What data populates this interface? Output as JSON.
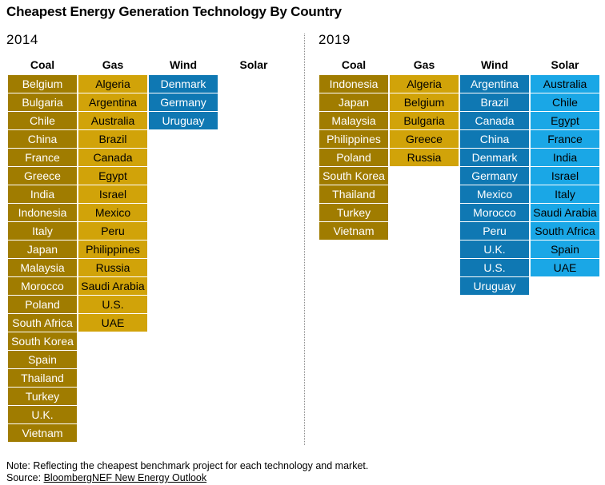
{
  "title": "Cheapest Energy Generation Technology By Country",
  "colors": {
    "coal": "#a07c00",
    "gas": "#d1a309",
    "wind": "#0f78b3",
    "solar": "#1aa7e6"
  },
  "chart_data": {
    "type": "table",
    "title": "Cheapest Energy Generation Technology By Country",
    "technologies": [
      "Coal",
      "Gas",
      "Wind",
      "Solar"
    ],
    "panels": [
      {
        "year": "2014",
        "columns": [
          {
            "name": "Coal",
            "key": "coal",
            "countries": [
              "Belgium",
              "Bulgaria",
              "Chile",
              "China",
              "France",
              "Greece",
              "India",
              "Indonesia",
              "Italy",
              "Japan",
              "Malaysia",
              "Morocco",
              "Poland",
              "South Africa",
              "South Korea",
              "Spain",
              "Thailand",
              "Turkey",
              "U.K.",
              "Vietnam"
            ]
          },
          {
            "name": "Gas",
            "key": "gas",
            "countries": [
              "Algeria",
              "Argentina",
              "Australia",
              "Brazil",
              "Canada",
              "Egypt",
              "Israel",
              "Mexico",
              "Peru",
              "Philippines",
              "Russia",
              "Saudi Arabia",
              "U.S.",
              "UAE"
            ]
          },
          {
            "name": "Wind",
            "key": "wind",
            "countries": [
              "Denmark",
              "Germany",
              "Uruguay"
            ]
          },
          {
            "name": "Solar",
            "key": "solar",
            "countries": []
          }
        ]
      },
      {
        "year": "2019",
        "columns": [
          {
            "name": "Coal",
            "key": "coal",
            "countries": [
              "Indonesia",
              "Japan",
              "Malaysia",
              "Philippines",
              "Poland",
              "South Korea",
              "Thailand",
              "Turkey",
              "Vietnam"
            ]
          },
          {
            "name": "Gas",
            "key": "gas",
            "countries": [
              "Algeria",
              "Belgium",
              "Bulgaria",
              "Greece",
              "Russia"
            ]
          },
          {
            "name": "Wind",
            "key": "wind",
            "countries": [
              "Argentina",
              "Brazil",
              "Canada",
              "China",
              "Denmark",
              "Germany",
              "Mexico",
              "Morocco",
              "Peru",
              "U.K.",
              "U.S.",
              "Uruguay"
            ]
          },
          {
            "name": "Solar",
            "key": "solar",
            "countries": [
              "Australia",
              "Chile",
              "Egypt",
              "France",
              "India",
              "Israel",
              "Italy",
              "Saudi Arabia",
              "South Africa",
              "Spain",
              "UAE"
            ]
          }
        ]
      }
    ]
  },
  "footer": {
    "note": "Note: Reflecting the cheapest benchmark project for each technology and market.",
    "source_prefix": "Source: ",
    "source_link": "BloombergNEF New Energy Outlook"
  }
}
